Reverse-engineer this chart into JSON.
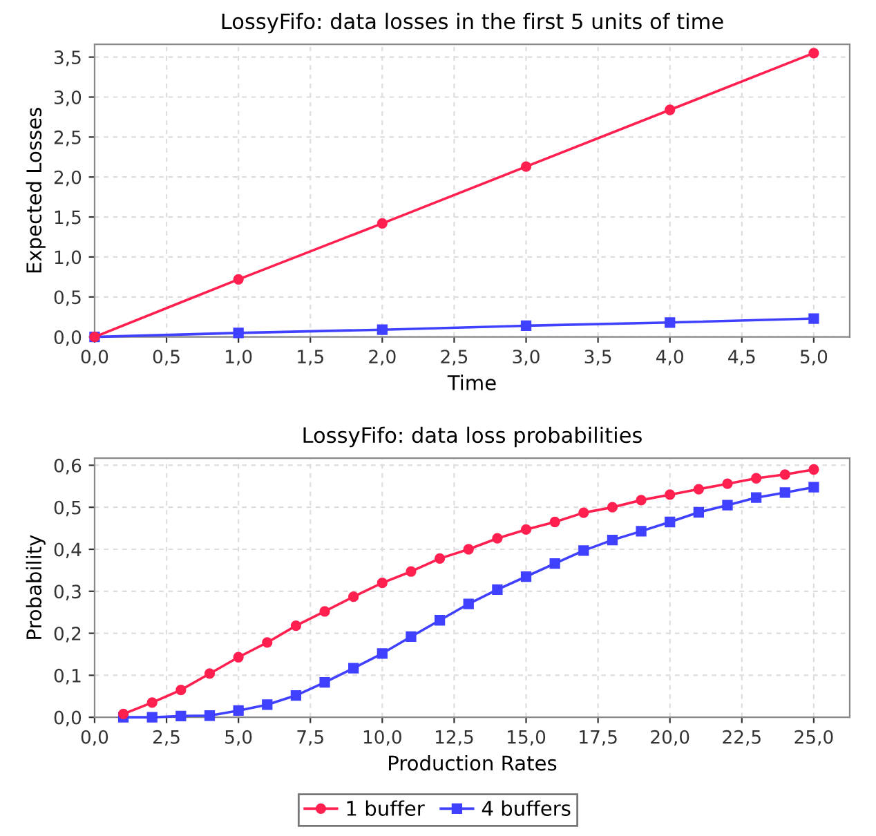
{
  "chart_data": [
    {
      "type": "line",
      "title": "LossyFifo: data losses in the first 5 units of time",
      "xlabel": "Time",
      "ylabel": "Expected Losses",
      "x": [
        0,
        1,
        2,
        3,
        4,
        5
      ],
      "series": [
        {
          "color": "#ff2050",
          "marker": "circle",
          "values": [
            0,
            0.72,
            1.42,
            2.13,
            2.84,
            3.55
          ]
        },
        {
          "color": "#4040ff",
          "marker": "square",
          "values": [
            0,
            0.05,
            0.09,
            0.14,
            0.18,
            0.23
          ]
        }
      ],
      "xlim": [
        0,
        5.25
      ],
      "ylim": [
        0,
        3.66
      ],
      "xticks": [
        {
          "value": 0,
          "label": "0,0"
        },
        {
          "value": 0.5,
          "label": "0,5"
        },
        {
          "value": 1,
          "label": "1,0"
        },
        {
          "value": 1.5,
          "label": "1,5"
        },
        {
          "value": 2,
          "label": "2,0"
        },
        {
          "value": 2.5,
          "label": "2,5"
        },
        {
          "value": 3,
          "label": "3,0"
        },
        {
          "value": 3.5,
          "label": "3,5"
        },
        {
          "value": 4,
          "label": "4,0"
        },
        {
          "value": 4.5,
          "label": "4,5"
        },
        {
          "value": 5,
          "label": "5,0"
        }
      ],
      "yticks": [
        {
          "value": 0,
          "label": "0,0"
        },
        {
          "value": 0.5,
          "label": "0,5"
        },
        {
          "value": 1,
          "label": "1,0"
        },
        {
          "value": 1.5,
          "label": "1,5"
        },
        {
          "value": 2,
          "label": "2,0"
        },
        {
          "value": 2.5,
          "label": "2,5"
        },
        {
          "value": 3,
          "label": "3,0"
        },
        {
          "value": 3.5,
          "label": "3,5"
        }
      ],
      "grid": true,
      "legend": false
    },
    {
      "type": "line",
      "title": "LossyFifo: data loss probabilities",
      "xlabel": "Production Rates",
      "ylabel": "Probability",
      "x": [
        1,
        2,
        3,
        4,
        5,
        6,
        7,
        8,
        9,
        10,
        11,
        12,
        13,
        14,
        15,
        16,
        17,
        18,
        19,
        20,
        21,
        22,
        23,
        24,
        25
      ],
      "series": [
        {
          "name": "1 buffer",
          "color": "#ff2050",
          "marker": "circle",
          "values": [
            0.008,
            0.035,
            0.065,
            0.104,
            0.143,
            0.178,
            0.218,
            0.252,
            0.287,
            0.32,
            0.347,
            0.378,
            0.4,
            0.426,
            0.447,
            0.465,
            0.487,
            0.5,
            0.517,
            0.53,
            0.543,
            0.556,
            0.569,
            0.578,
            0.59
          ]
        },
        {
          "name": "4 buffers",
          "color": "#4040ff",
          "marker": "square",
          "values": [
            0,
            0,
            0.003,
            0.004,
            0.016,
            0.03,
            0.052,
            0.083,
            0.117,
            0.152,
            0.192,
            0.231,
            0.27,
            0.304,
            0.335,
            0.366,
            0.397,
            0.422,
            0.443,
            0.465,
            0.488,
            0.505,
            0.523,
            0.535,
            0.548
          ]
        }
      ],
      "xlim": [
        0,
        26.25
      ],
      "ylim": [
        0,
        0.617
      ],
      "xticks": [
        {
          "value": 0,
          "label": "0,0"
        },
        {
          "value": 2.5,
          "label": "2,5"
        },
        {
          "value": 5,
          "label": "5,0"
        },
        {
          "value": 7.5,
          "label": "7,5"
        },
        {
          "value": 10,
          "label": "10,0"
        },
        {
          "value": 12.5,
          "label": "12,5"
        },
        {
          "value": 15,
          "label": "15,0"
        },
        {
          "value": 17.5,
          "label": "17,5"
        },
        {
          "value": 20,
          "label": "20,0"
        },
        {
          "value": 22.5,
          "label": "22,5"
        },
        {
          "value": 25,
          "label": "25,0"
        }
      ],
      "yticks": [
        {
          "value": 0,
          "label": "0,0"
        },
        {
          "value": 0.1,
          "label": "0,1"
        },
        {
          "value": 0.2,
          "label": "0,2"
        },
        {
          "value": 0.3,
          "label": "0,3"
        },
        {
          "value": 0.4,
          "label": "0,4"
        },
        {
          "value": 0.5,
          "label": "0,5"
        },
        {
          "value": 0.6,
          "label": "0,6"
        }
      ],
      "grid": true,
      "legend": "bottom"
    }
  ]
}
